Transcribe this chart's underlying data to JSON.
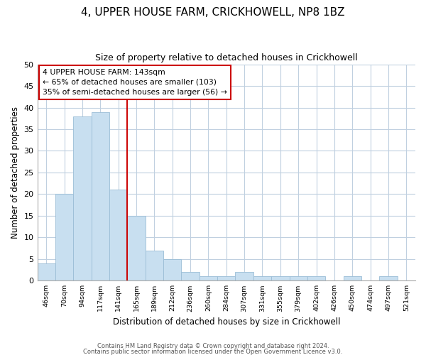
{
  "title": "4, UPPER HOUSE FARM, CRICKHOWELL, NP8 1BZ",
  "subtitle": "Size of property relative to detached houses in Crickhowell",
  "xlabel": "Distribution of detached houses by size in Crickhowell",
  "ylabel": "Number of detached properties",
  "bar_labels": [
    "46sqm",
    "70sqm",
    "94sqm",
    "117sqm",
    "141sqm",
    "165sqm",
    "189sqm",
    "212sqm",
    "236sqm",
    "260sqm",
    "284sqm",
    "307sqm",
    "331sqm",
    "355sqm",
    "379sqm",
    "402sqm",
    "426sqm",
    "450sqm",
    "474sqm",
    "497sqm",
    "521sqm"
  ],
  "bar_values": [
    4,
    20,
    38,
    39,
    21,
    15,
    7,
    5,
    2,
    1,
    1,
    2,
    1,
    1,
    1,
    1,
    0,
    1,
    0,
    1,
    0
  ],
  "bar_color": "#c8dff0",
  "bar_edge_color": "#9bbdd6",
  "vline_index": 5,
  "vline_color": "#cc0000",
  "ylim": [
    0,
    50
  ],
  "yticks": [
    0,
    5,
    10,
    15,
    20,
    25,
    30,
    35,
    40,
    45,
    50
  ],
  "annotation_title": "4 UPPER HOUSE FARM: 143sqm",
  "annotation_line1": "← 65% of detached houses are smaller (103)",
  "annotation_line2": "35% of semi-detached houses are larger (56) →",
  "annotation_box_color": "#ffffff",
  "annotation_box_edge": "#cc0000",
  "footer_line1": "Contains HM Land Registry data © Crown copyright and database right 2024.",
  "footer_line2": "Contains public sector information licensed under the Open Government Licence v3.0.",
  "background_color": "#ffffff",
  "grid_color": "#c0d0e0"
}
